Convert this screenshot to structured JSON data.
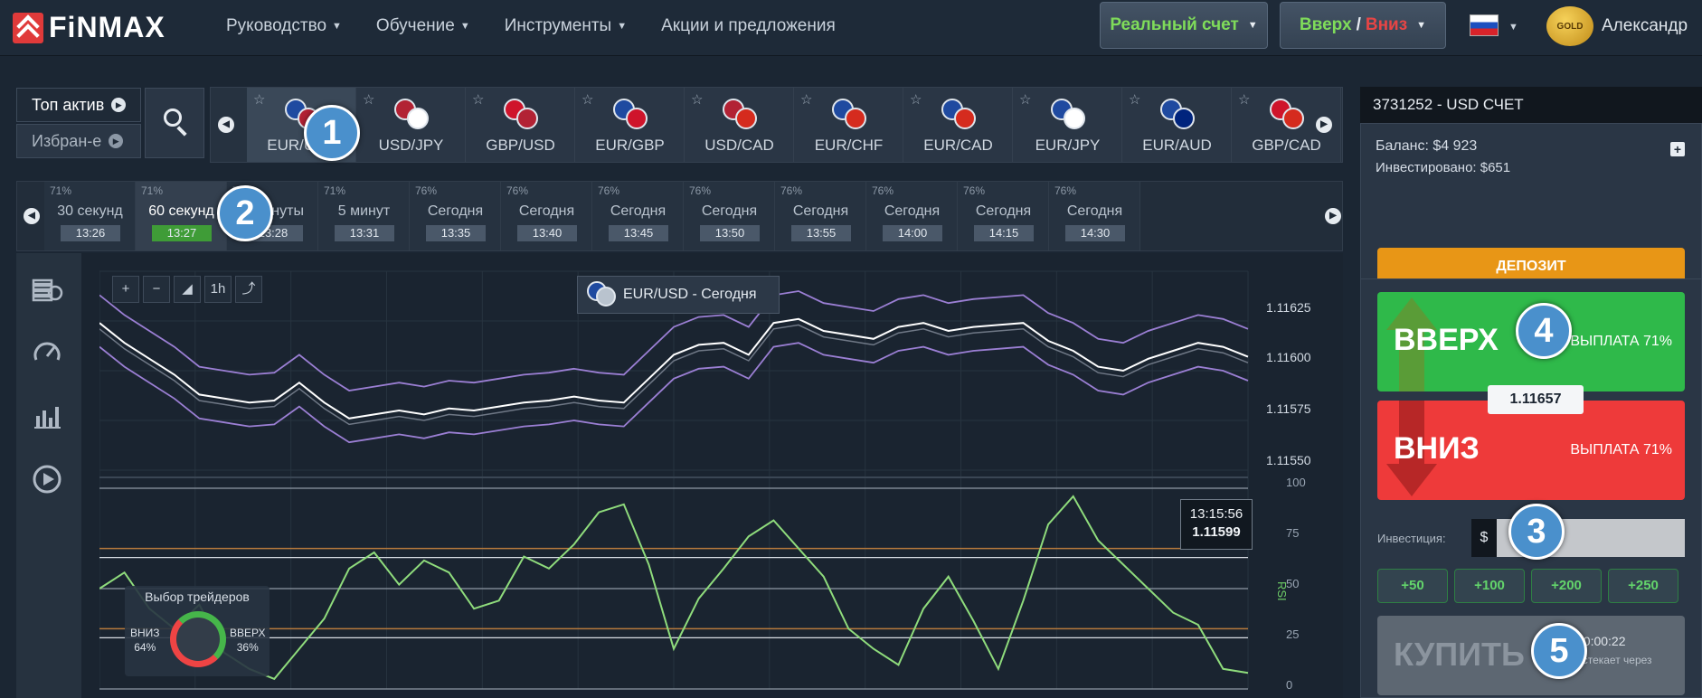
{
  "header": {
    "logo_text": "FiNMAX",
    "nav": [
      "Руководство",
      "Обучение",
      "Инструменты",
      "Акции и предложения"
    ],
    "real_account": "Реальный счет",
    "updown_up": "Вверх",
    "updown_sep": "/",
    "updown_down": "Вниз",
    "gold_badge": "GOLD",
    "user_name": "Александр"
  },
  "asset_panel": {
    "top_assets": "Топ актив",
    "favorites": "Избран-е",
    "assets": [
      {
        "label": "EUR/USD",
        "active": true
      },
      {
        "label": "USD/JPY"
      },
      {
        "label": "GBP/USD"
      },
      {
        "label": "EUR/GBP"
      },
      {
        "label": "USD/CAD"
      },
      {
        "label": "EUR/CHF"
      },
      {
        "label": "EUR/CAD"
      },
      {
        "label": "EUR/JPY"
      },
      {
        "label": "EUR/AUD"
      },
      {
        "label": "GBP/CAD"
      }
    ]
  },
  "expiry_panel": {
    "items": [
      {
        "payout": "71%",
        "name": "30 секунд",
        "time": "13:26"
      },
      {
        "payout": "71%",
        "name": "60 секунд",
        "time": "13:27",
        "active": true
      },
      {
        "payout": "71%",
        "name": "2 минуты",
        "time": "13:28"
      },
      {
        "payout": "71%",
        "name": "5 минут",
        "time": "13:31"
      },
      {
        "payout": "76%",
        "name": "Сегодня",
        "time": "13:35"
      },
      {
        "payout": "76%",
        "name": "Сегодня",
        "time": "13:40"
      },
      {
        "payout": "76%",
        "name": "Сегодня",
        "time": "13:45"
      },
      {
        "payout": "76%",
        "name": "Сегодня",
        "time": "13:50"
      },
      {
        "payout": "76%",
        "name": "Сегодня",
        "time": "13:55"
      },
      {
        "payout": "76%",
        "name": "Сегодня",
        "time": "14:00"
      },
      {
        "payout": "76%",
        "name": "Сегодня",
        "time": "14:15"
      },
      {
        "payout": "76%",
        "name": "Сегодня",
        "time": "14:30"
      }
    ]
  },
  "chart": {
    "zoom_tools": [
      "+",
      "−",
      "◢",
      "1h",
      "⤴"
    ],
    "title": "EUR/USD - Сегодня",
    "price_ticks": [
      "1.11625",
      "1.11600",
      "1.11575",
      "1.11550"
    ],
    "rsi_ticks": [
      "100",
      "75",
      "50",
      "25",
      "0"
    ],
    "rsi_label": "RSI",
    "crosshair_time": "13:15:56",
    "crosshair_price": "1.11599",
    "traders_title": "Выбор трейдеров",
    "traders_down_label": "ВНИЗ",
    "traders_down_pct": "64%",
    "traders_up_label": "ВВЕРХ",
    "traders_up_pct": "36%"
  },
  "chart_data": {
    "type": "line",
    "title": "EUR/USD - Сегодня",
    "xlabel": "",
    "ylabel": "",
    "ylim": [
      1.1154,
      1.1164
    ],
    "price": [
      1.11614,
      1.11604,
      1.11596,
      1.11588,
      1.11578,
      1.11576,
      1.11574,
      1.11575,
      1.11584,
      1.11574,
      1.11566,
      1.11568,
      1.1157,
      1.11568,
      1.11571,
      1.1157,
      1.11572,
      1.11574,
      1.11575,
      1.11577,
      1.11575,
      1.11574,
      1.11586,
      1.11598,
      1.11603,
      1.11604,
      1.11598,
      1.11614,
      1.11616,
      1.1161,
      1.11608,
      1.11606,
      1.11612,
      1.11614,
      1.1161,
      1.11612,
      1.11613,
      1.11614,
      1.11605,
      1.116,
      1.11592,
      1.1159,
      1.11596,
      1.116,
      1.11604,
      1.11602,
      1.11597
    ],
    "rsi": [
      50,
      58,
      40,
      30,
      42,
      18,
      10,
      5,
      20,
      35,
      60,
      68,
      52,
      64,
      58,
      40,
      44,
      66,
      60,
      72,
      88,
      92,
      62,
      20,
      45,
      60,
      76,
      84,
      70,
      56,
      30,
      20,
      12,
      40,
      56,
      34,
      10,
      44,
      82,
      96,
      74,
      62,
      50,
      38,
      32,
      10,
      8
    ],
    "rsi_levels": [
      70,
      30
    ],
    "rsi_ylim": [
      0,
      100
    ]
  },
  "account": {
    "header": "3731252 - USD СЧЕТ",
    "balance": "Баланс: $4 923",
    "invested": "Инвестировано: $651",
    "deposit": "ДЕПОЗИТ"
  },
  "trade": {
    "up_label": "ВВЕРХ",
    "up_payout": "ВЫПЛАТА 71%",
    "down_label": "ВНИЗ",
    "down_payout": "ВЫПЛАТА 71%",
    "current_price": "1.11657",
    "invest_label": "Инвестиция:",
    "currency": "$",
    "invest_value": "",
    "presets": [
      "+50",
      "+100",
      "+200",
      "+250"
    ],
    "buy_label": "КУПИТЬ",
    "timer": "00:00:22",
    "expires_text": "истекает через"
  },
  "callouts": [
    "1",
    "2",
    "3",
    "4",
    "5"
  ],
  "colors": {
    "up_green": "#2fb94a",
    "down_red": "#ee3a3a",
    "deposit_orange": "#e89616",
    "callout_blue": "#4a90cc"
  }
}
